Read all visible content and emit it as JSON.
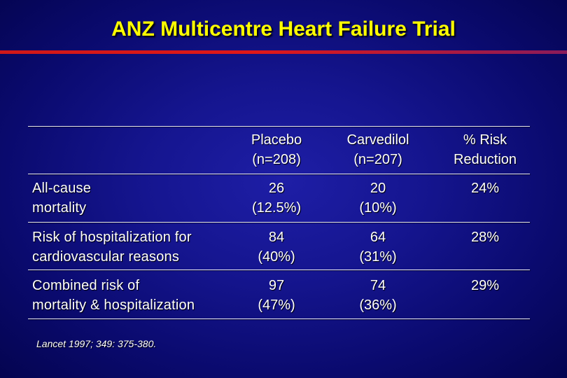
{
  "slide": {
    "title": "ANZ Multicentre Heart Failure Trial",
    "citation": "Lancet 1997; 349: 375-380."
  },
  "table": {
    "headers": [
      {
        "line1": "Placebo",
        "line2": "(n=208)"
      },
      {
        "line1": "Carvedilol",
        "line2": "(n=207)"
      },
      {
        "line1": "% Risk",
        "line2": "Reduction"
      }
    ],
    "rows": [
      {
        "label_line1": "All-cause",
        "label_line2": "mortality",
        "placebo_line1": "26",
        "placebo_line2": "(12.5%)",
        "carvedilol_line1": "20",
        "carvedilol_line2": "(10%)",
        "risk_reduction": "24%"
      },
      {
        "label_line1": "Risk of hospitalization for",
        "label_line2": "cardiovascular reasons",
        "placebo_line1": "84",
        "placebo_line2": "(40%)",
        "carvedilol_line1": "64",
        "carvedilol_line2": "(31%)",
        "risk_reduction": "28%"
      },
      {
        "label_line1": "Combined risk of",
        "label_line2": "mortality & hospitalization",
        "placebo_line1": "97",
        "placebo_line2": "(47%)",
        "carvedilol_line1": "74",
        "carvedilol_line2": "(36%)",
        "risk_reduction": "29%"
      }
    ]
  },
  "colors": {
    "title": "#ffff00",
    "accent_rule": "#d01818",
    "background": "#15158f",
    "text": "#ffffff"
  }
}
